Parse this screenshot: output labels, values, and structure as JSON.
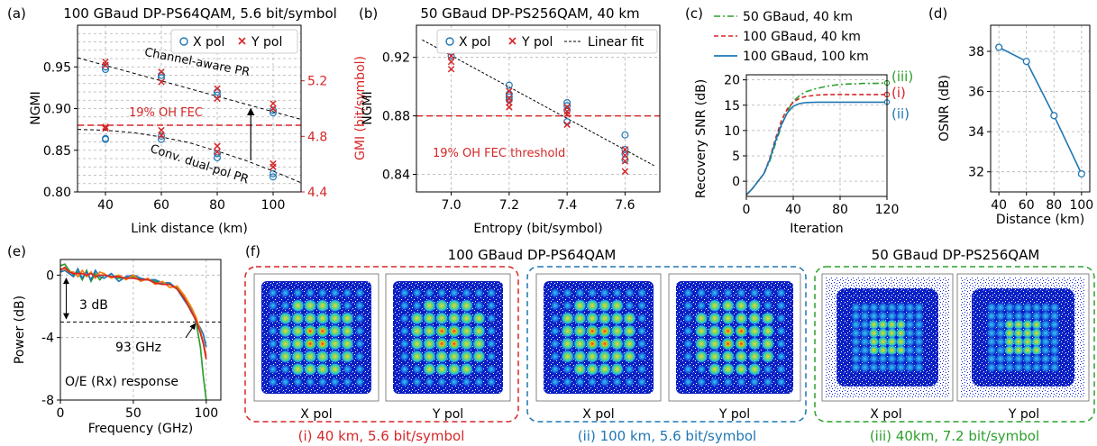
{
  "figure": {
    "panel_labels": [
      "(a)",
      "(b)",
      "(c)",
      "(d)",
      "(e)",
      "(f)"
    ],
    "colors": {
      "blue": "#1f77b4",
      "red": "#d62728",
      "green": "#2ca02c",
      "orange": "#ff7f0e",
      "black": "#000000",
      "grid": "#b0b0b0"
    }
  },
  "constellations": {
    "group_titles": [
      "100 GBaud DP-PS64QAM",
      "50 GBaud DP-PS256QAM"
    ],
    "x_label": "X pol",
    "y_label": "Y pol",
    "captions": [
      "(i) 40 km, 5.6 bit/symbol",
      "(ii) 100 km, 5.6 bit/symbol",
      "(iii) 40km, 7.2 bit/symbol"
    ]
  },
  "chart_data": [
    {
      "id": "a",
      "type": "scatter",
      "title": "100 GBaud DP-PS64QAM, 5.6 bit/symbol",
      "xlabel": "Link distance (km)",
      "ylabel": "NGMI",
      "y2label": "GMI (bit/symbol)",
      "xlim": [
        30,
        110
      ],
      "ylim": [
        0.8,
        1.0
      ],
      "y2lim": [
        4.4,
        5.6
      ],
      "xticks": [
        40,
        60,
        80,
        100
      ],
      "yticks": [
        0.8,
        0.85,
        0.9,
        0.95
      ],
      "y2ticks": [
        4.4,
        4.8,
        5.2
      ],
      "legend": {
        "position": "top-right",
        "entries": [
          "X pol",
          "Y pol"
        ]
      },
      "series": [
        {
          "name": "X pol",
          "marker": "circle",
          "points": [
            [
              40,
              0.95
            ],
            [
              40,
              0.947
            ],
            [
              40,
              0.864
            ],
            [
              40,
              0.863
            ],
            [
              60,
              0.94
            ],
            [
              60,
              0.937
            ],
            [
              60,
              0.867
            ],
            [
              60,
              0.863
            ],
            [
              80,
              0.92
            ],
            [
              80,
              0.916
            ],
            [
              80,
              0.846
            ],
            [
              80,
              0.841
            ],
            [
              100,
              0.898
            ],
            [
              100,
              0.895
            ],
            [
              100,
              0.822
            ],
            [
              100,
              0.818
            ]
          ]
        },
        {
          "name": "Y pol",
          "marker": "x",
          "points": [
            [
              40,
              0.956
            ],
            [
              40,
              0.952
            ],
            [
              40,
              0.878
            ],
            [
              40,
              0.876
            ],
            [
              60,
              0.944
            ],
            [
              60,
              0.932
            ],
            [
              60,
              0.874
            ],
            [
              60,
              0.868
            ],
            [
              80,
              0.924
            ],
            [
              80,
              0.912
            ],
            [
              80,
              0.855
            ],
            [
              80,
              0.848
            ],
            [
              100,
              0.906
            ],
            [
              100,
              0.9
            ],
            [
              100,
              0.834
            ],
            [
              100,
              0.83
            ]
          ]
        }
      ],
      "threshold": {
        "y": 0.88,
        "label": "19% OH FEC"
      },
      "fit_curves": [
        {
          "label": "Channel-aware PR",
          "points": [
            [
              30,
              0.961
            ],
            [
              110,
              0.887
            ]
          ]
        },
        {
          "label": "Conv. dual-pol PR",
          "points": [
            [
              30,
              0.875
            ],
            [
              40,
              0.874
            ],
            [
              50,
              0.871
            ],
            [
              60,
              0.866
            ],
            [
              70,
              0.859
            ],
            [
              80,
              0.849
            ],
            [
              90,
              0.838
            ],
            [
              100,
              0.825
            ],
            [
              110,
              0.811
            ]
          ]
        }
      ],
      "arrow": {
        "x": 92,
        "from": 0.838,
        "to": 0.9
      }
    },
    {
      "id": "b",
      "type": "scatter",
      "title": "50 GBaud DP-PS256QAM, 40 km",
      "xlabel": "Entropy (bit/symbol)",
      "ylabel": "NGMI",
      "xlim": [
        6.88,
        7.72
      ],
      "ylim": [
        0.828,
        0.942
      ],
      "xticks": [
        7.0,
        7.2,
        7.4,
        7.6
      ],
      "yticks": [
        0.84,
        0.88,
        0.92
      ],
      "legend": {
        "position": "top",
        "entries": [
          "X pol",
          "Y pol",
          "Linear fit"
        ]
      },
      "series": [
        {
          "name": "X pol",
          "marker": "circle",
          "points": [
            [
              7.0,
              0.929
            ],
            [
              7.0,
              0.926
            ],
            [
              7.0,
              0.924
            ],
            [
              7.0,
              0.921
            ],
            [
              7.2,
              0.901
            ],
            [
              7.2,
              0.895
            ],
            [
              7.2,
              0.893
            ],
            [
              7.2,
              0.891
            ],
            [
              7.4,
              0.889
            ],
            [
              7.4,
              0.887
            ],
            [
              7.4,
              0.884
            ],
            [
              7.4,
              0.876
            ],
            [
              7.6,
              0.867
            ],
            [
              7.6,
              0.857
            ],
            [
              7.6,
              0.854
            ],
            [
              7.6,
              0.85
            ]
          ]
        },
        {
          "name": "Y pol",
          "marker": "x",
          "points": [
            [
              7.0,
              0.925
            ],
            [
              7.0,
              0.921
            ],
            [
              7.0,
              0.917
            ],
            [
              7.0,
              0.912
            ],
            [
              7.2,
              0.897
            ],
            [
              7.2,
              0.892
            ],
            [
              7.2,
              0.889
            ],
            [
              7.2,
              0.886
            ],
            [
              7.4,
              0.886
            ],
            [
              7.4,
              0.883
            ],
            [
              7.4,
              0.881
            ],
            [
              7.4,
              0.874
            ],
            [
              7.6,
              0.857
            ],
            [
              7.6,
              0.853
            ],
            [
              7.6,
              0.849
            ],
            [
              7.6,
              0.842
            ]
          ]
        },
        {
          "name": "Linear fit",
          "points": [
            [
              6.9,
              0.932
            ],
            [
              7.7,
              0.846
            ]
          ]
        }
      ],
      "threshold": {
        "y": 0.88,
        "label": "19% OH FEC threshold"
      }
    },
    {
      "id": "c",
      "type": "line",
      "xlabel": "Iteration",
      "ylabel": "Recovery SNR (dB)",
      "xlim": [
        0,
        120
      ],
      "ylim": [
        -3,
        21
      ],
      "xticks": [
        0,
        40,
        80,
        120
      ],
      "yticks": [
        0,
        5,
        10,
        15,
        20
      ],
      "legend": {
        "position": "top",
        "entries": [
          "50 GBaud, 40 km",
          "100 GBaud, 40 km",
          "100 GBaud, 100 km"
        ]
      },
      "series": [
        {
          "name": "50 GBaud, 40 km",
          "style": "dash-dot",
          "marker_label": "(iii)",
          "x": [
            0,
            5,
            10,
            15,
            20,
            25,
            30,
            35,
            40,
            45,
            50,
            60,
            70,
            80,
            90,
            100,
            110,
            120
          ],
          "y": [
            -2.7,
            -1.5,
            0,
            1.5,
            4,
            7.5,
            11,
            13.8,
            15.8,
            16.8,
            17.6,
            18.3,
            18.8,
            19.1,
            19.2,
            19.3,
            19.3,
            19.4
          ]
        },
        {
          "name": "100 GBaud, 40 km",
          "style": "dashed",
          "marker_label": "(i)",
          "x": [
            0,
            5,
            10,
            15,
            20,
            25,
            30,
            35,
            40,
            45,
            50,
            60,
            70,
            80,
            90,
            100,
            110,
            120
          ],
          "y": [
            -2.7,
            -1.5,
            0,
            1.5,
            4.5,
            8.5,
            12,
            14.3,
            15.6,
            16.3,
            16.7,
            17.0,
            17.1,
            17.1,
            17.1,
            17.1,
            17.1,
            17.1
          ]
        },
        {
          "name": "100 GBaud, 100 km",
          "style": "solid",
          "marker_label": "(ii)",
          "x": [
            0,
            5,
            10,
            15,
            20,
            25,
            30,
            35,
            40,
            45,
            50,
            60,
            70,
            80,
            90,
            100,
            110,
            120
          ],
          "y": [
            -2.7,
            -1.5,
            0,
            1.5,
            4.3,
            8,
            11.2,
            13.5,
            14.8,
            15.3,
            15.5,
            15.6,
            15.6,
            15.6,
            15.6,
            15.6,
            15.6,
            15.6
          ]
        }
      ]
    },
    {
      "id": "d",
      "type": "line",
      "xlabel": "Distance (km)",
      "ylabel": "OSNR (dB)",
      "xlim": [
        34,
        106
      ],
      "ylim": [
        31,
        39.3
      ],
      "xticks": [
        40,
        60,
        80,
        100
      ],
      "yticks": [
        32,
        34,
        36,
        38
      ],
      "series": [
        {
          "x": [
            40,
            60,
            80,
            100
          ],
          "y": [
            38.2,
            37.5,
            34.8,
            31.9
          ]
        }
      ]
    },
    {
      "id": "e",
      "type": "line",
      "xlabel": "Frequency (GHz)",
      "ylabel": "Power (dB)",
      "xlim": [
        0,
        110
      ],
      "ylim": [
        -8,
        1
      ],
      "xticks": [
        0,
        50,
        100
      ],
      "yticks": [
        -8,
        -4,
        0
      ],
      "annotations": [
        "3 dB",
        "93 GHz",
        "O/E (Rx) response"
      ],
      "reference_line": {
        "y": -3
      },
      "series": [
        {
          "color": "green",
          "x": [
            0,
            3,
            6,
            9,
            12,
            15,
            18,
            21,
            24,
            27,
            30,
            35,
            40,
            45,
            50,
            55,
            60,
            65,
            70,
            75,
            80,
            85,
            90,
            93,
            96,
            98,
            100
          ],
          "y": [
            0.6,
            0.7,
            0.3,
            0,
            0.2,
            -0.3,
            0.3,
            -0.4,
            0.1,
            -0.3,
            0,
            -0.1,
            -0.2,
            -0.2,
            -0.1,
            -0.3,
            -0.3,
            -0.4,
            -0.5,
            -0.6,
            -0.8,
            -1.4,
            -2.2,
            -3,
            -4.6,
            -6.5,
            -8
          ]
        },
        {
          "color": "blue",
          "x": [
            0,
            3,
            6,
            9,
            12,
            15,
            18,
            21,
            24,
            27,
            30,
            35,
            40,
            45,
            50,
            55,
            60,
            65,
            70,
            75,
            80,
            85,
            90,
            93,
            96,
            98,
            100
          ],
          "y": [
            0.2,
            0.3,
            0.1,
            -0.1,
            0.4,
            -0.2,
            0.2,
            -0.3,
            0.3,
            -0.1,
            -0.2,
            0.1,
            -0.4,
            -0.1,
            0,
            -0.2,
            -0.3,
            -0.3,
            -0.5,
            -0.5,
            -0.9,
            -1.6,
            -2.3,
            -2.9,
            -3.4,
            -3.8,
            -4.6
          ]
        },
        {
          "color": "orange",
          "x": [
            0,
            3,
            6,
            9,
            12,
            15,
            18,
            21,
            24,
            27,
            30,
            35,
            40,
            45,
            50,
            55,
            60,
            65,
            70,
            75,
            80,
            85,
            90,
            93,
            96,
            98,
            100
          ],
          "y": [
            0.4,
            0.4,
            0.2,
            0.2,
            -0.1,
            0.3,
            -0.1,
            0.2,
            -0.2,
            0.2,
            0.1,
            -0.2,
            0,
            -0.3,
            0,
            -0.4,
            -0.2,
            -0.6,
            -0.4,
            -0.8,
            -0.7,
            -1.3,
            -2.1,
            -2.7,
            -3.6,
            -4.3,
            -5.2
          ]
        },
        {
          "color": "red",
          "x": [
            0,
            3,
            6,
            9,
            12,
            15,
            18,
            21,
            24,
            27,
            30,
            35,
            40,
            45,
            50,
            55,
            60,
            65,
            70,
            75,
            80,
            85,
            90,
            93,
            96,
            98,
            100
          ],
          "y": [
            0.3,
            0.5,
            0.2,
            0.1,
            0.1,
            0.1,
            0,
            0.1,
            -0.1,
            0,
            0,
            -0.1,
            -0.1,
            -0.2,
            -0.2,
            -0.3,
            -0.3,
            -0.5,
            -0.6,
            -0.6,
            -0.9,
            -1.5,
            -2.4,
            -2.9,
            -3.7,
            -4.4,
            -5.4
          ]
        }
      ]
    }
  ]
}
